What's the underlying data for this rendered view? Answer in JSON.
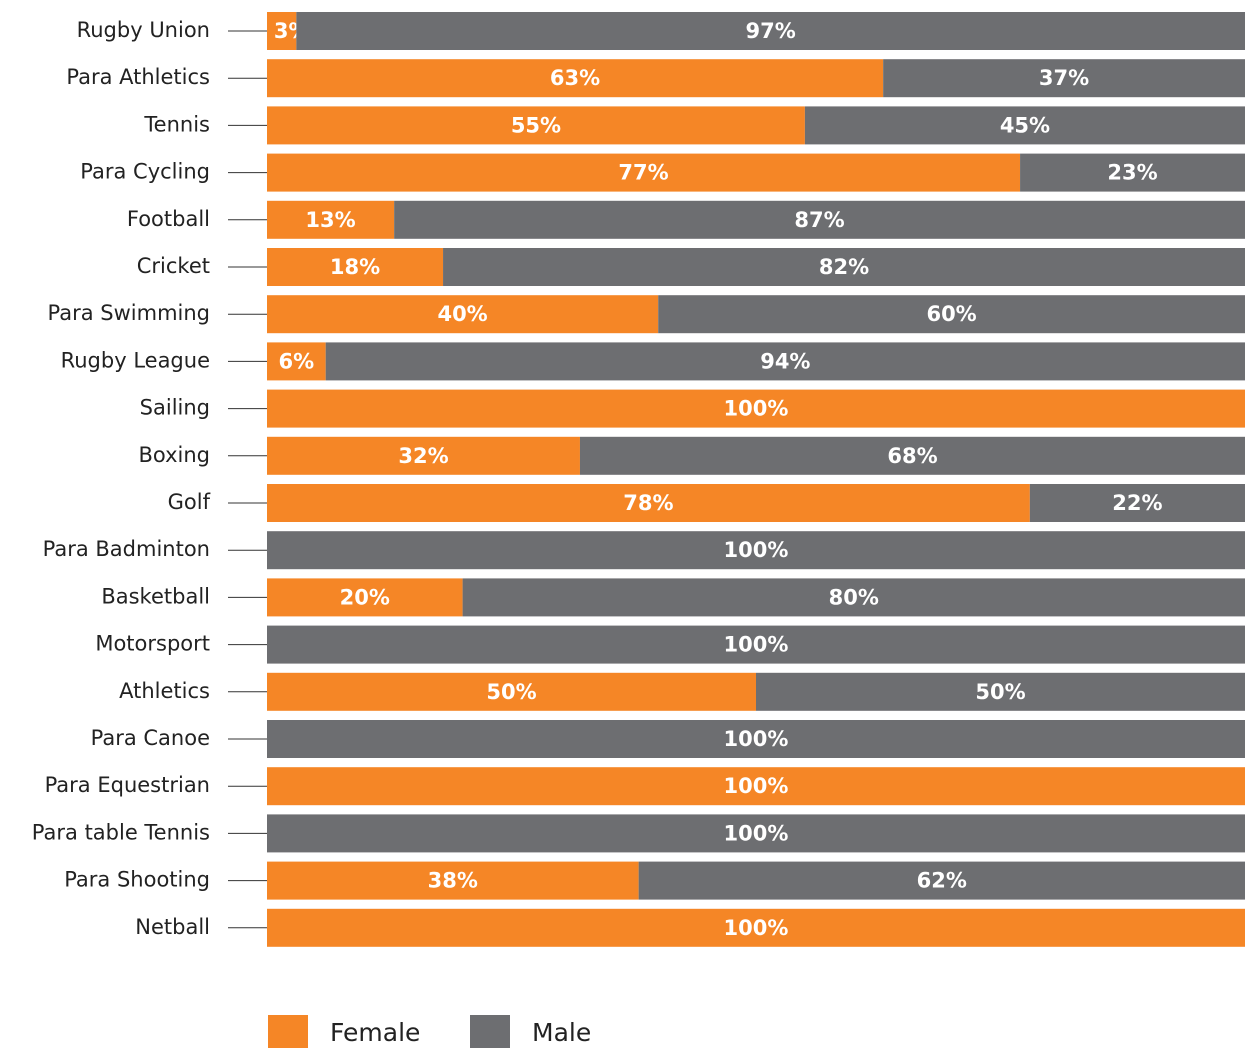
{
  "chart_data": {
    "type": "stacked-bar-horizontal",
    "categories": [
      "Rugby Union",
      "Para Athletics",
      "Tennis",
      "Para Cycling",
      "Football",
      "Cricket",
      "Para Swimming",
      "Rugby League",
      "Sailing",
      "Boxing",
      "Golf",
      "Para Badminton",
      "Basketball",
      "Motorsport",
      "Athletics",
      "Para Canoe",
      "Para Equestrian",
      "Para table Tennis",
      "Para Shooting",
      "Netball"
    ],
    "xlim": [
      0,
      100
    ],
    "series": [
      {
        "name": "Female",
        "color": "#f58626",
        "values": [
          3,
          63,
          55,
          77,
          13,
          18,
          40,
          6,
          100,
          32,
          78,
          0,
          20,
          0,
          50,
          0,
          100,
          0,
          38,
          100
        ],
        "value_labels": [
          "3%",
          "63%",
          "55%",
          "77%",
          "13%",
          "18%",
          "40%",
          "6%",
          "100%",
          "32%",
          "78%",
          null,
          "20%",
          null,
          "50%",
          null,
          "100%",
          null,
          "38%",
          "100%"
        ]
      },
      {
        "name": "Male",
        "color": "#6d6e71",
        "values": [
          97,
          37,
          45,
          23,
          87,
          82,
          60,
          94,
          0,
          68,
          22,
          100,
          80,
          100,
          50,
          100,
          0,
          100,
          62,
          0
        ],
        "value_labels": [
          "97%",
          "37%",
          "45%",
          "23%",
          "87%",
          "82%",
          "60%",
          "94%",
          null,
          "68%",
          "22%",
          "100%",
          "80%",
          "100%",
          "50%",
          "100%",
          null,
          "100%",
          "62%",
          null
        ]
      }
    ],
    "legend": "bottom-left"
  }
}
